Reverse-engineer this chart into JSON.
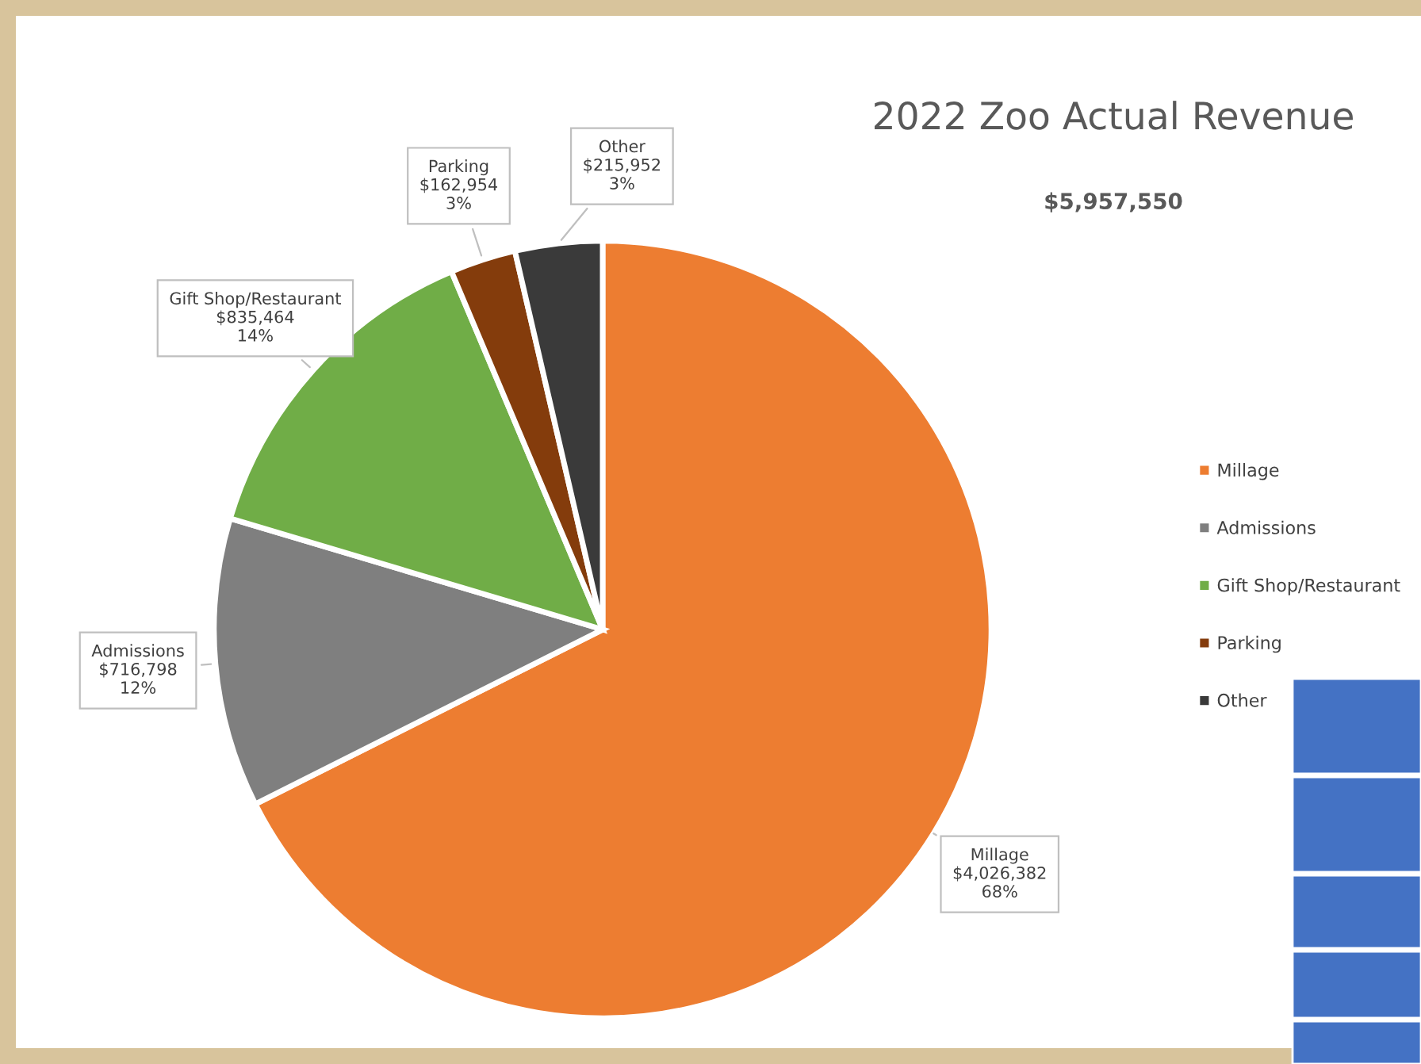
{
  "chart_data": {
    "type": "pie",
    "title": "2022 Zoo Actual Revenue",
    "subtitle": "$5,957,550",
    "categories": [
      "Millage",
      "Admissions",
      "Gift Shop/Restaurant",
      "Parking",
      "Other"
    ],
    "values": [
      4026382,
      716798,
      835464,
      162954,
      215952
    ],
    "colors": [
      "#ed7d31",
      "#7f7f7f",
      "#70ad47",
      "#843c0c",
      "#3a3a3a"
    ],
    "value_labels": [
      "$4,026,382\n68%",
      "$716,798\n12%",
      "$835,464\n14%",
      "$162,954\n3%",
      "$215,952\n3%"
    ],
    "legend": "right"
  }
}
